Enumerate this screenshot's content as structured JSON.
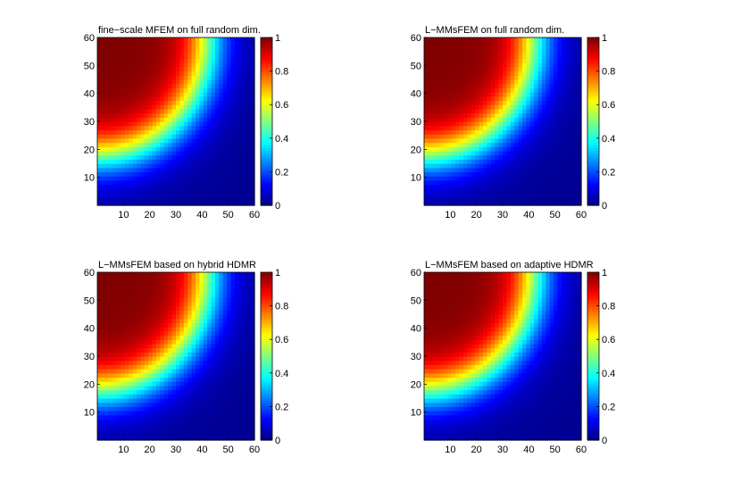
{
  "figure": {
    "background": "#ffffff"
  },
  "chart_data": [
    {
      "type": "heatmap",
      "title": "fine−scale MFEM on full random dim.",
      "xlabel": "",
      "ylabel": "",
      "xlim": [
        0,
        60
      ],
      "ylim": [
        0,
        60
      ],
      "xticks": [
        10,
        20,
        30,
        40,
        50,
        60
      ],
      "yticks": [
        10,
        20,
        30,
        40,
        50,
        60
      ],
      "colorbar": {
        "range": [
          0,
          1
        ],
        "ticks": [
          0,
          0.2,
          0.4,
          0.6,
          0.8,
          1
        ],
        "tick_labels": [
          "0",
          "0.2",
          "0.4",
          "0.6",
          "0.8",
          "1"
        ],
        "colormap": "jet"
      },
      "field": {
        "description_value_peak": 1,
        "value_min": 0.02,
        "front_center": [
          0,
          60
        ],
        "front_radius": 42,
        "front_width": 5
      }
    },
    {
      "type": "heatmap",
      "title": "L−MMsFEM  on full random dim.",
      "xlabel": "",
      "ylabel": "",
      "xlim": [
        0,
        60
      ],
      "ylim": [
        0,
        60
      ],
      "xticks": [
        10,
        20,
        30,
        40,
        50,
        60
      ],
      "yticks": [
        10,
        20,
        30,
        40,
        50,
        60
      ],
      "colorbar": {
        "range": [
          0,
          1
        ],
        "ticks": [
          0,
          0.2,
          0.4,
          0.6,
          0.8,
          1
        ],
        "tick_labels": [
          "0",
          "0.2",
          "0.4",
          "0.6",
          "0.8",
          "1"
        ],
        "colormap": "jet"
      },
      "field": {
        "description_value_peak": 1,
        "value_min": 0.02,
        "front_center": [
          0,
          60
        ],
        "front_radius": 42,
        "front_width": 5
      }
    },
    {
      "type": "heatmap",
      "title": "L−MMsFEM based on hybrid HDMR",
      "xlabel": "",
      "ylabel": "",
      "xlim": [
        0,
        60
      ],
      "ylim": [
        0,
        60
      ],
      "xticks": [
        10,
        20,
        30,
        40,
        50,
        60
      ],
      "yticks": [
        10,
        20,
        30,
        40,
        50,
        60
      ],
      "colorbar": {
        "range": [
          0,
          1
        ],
        "ticks": [
          0,
          0.2,
          0.4,
          0.6,
          0.8,
          1
        ],
        "tick_labels": [
          "0",
          "0.2",
          "0.4",
          "0.6",
          "0.8",
          "1"
        ],
        "colormap": "jet"
      },
      "field": {
        "description_value_peak": 1,
        "value_min": 0.02,
        "front_center": [
          0,
          60
        ],
        "front_radius": 42,
        "front_width": 5
      }
    },
    {
      "type": "heatmap",
      "title": "L−MMsFEM based on adaptive HDMR",
      "xlabel": "",
      "ylabel": "",
      "xlim": [
        0,
        60
      ],
      "ylim": [
        0,
        60
      ],
      "xticks": [
        10,
        20,
        30,
        40,
        50,
        60
      ],
      "yticks": [
        10,
        20,
        30,
        40,
        50,
        60
      ],
      "colorbar": {
        "range": [
          0,
          1
        ],
        "ticks": [
          0,
          0.2,
          0.4,
          0.6,
          0.8,
          1
        ],
        "tick_labels": [
          "0",
          "0.2",
          "0.4",
          "0.6",
          "0.8",
          "1"
        ],
        "colormap": "jet"
      },
      "field": {
        "description_value_peak": 1,
        "value_min": 0.02,
        "front_center": [
          0,
          60
        ],
        "front_radius": 42,
        "front_width": 5
      }
    }
  ]
}
